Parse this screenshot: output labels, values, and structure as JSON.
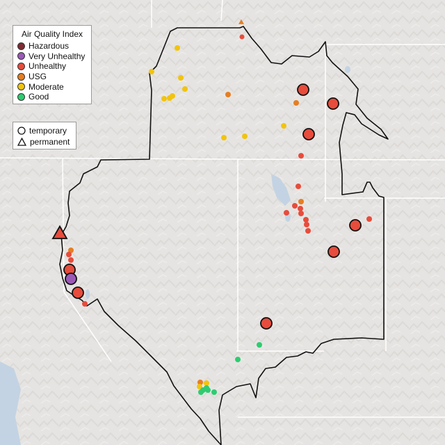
{
  "legend": {
    "title": "Air Quality Index",
    "categories": [
      {
        "label": "Hazardous",
        "color": "#7e2b32"
      },
      {
        "label": "Very Unhealthy",
        "color": "#9b59b6"
      },
      {
        "label": "Unhealthy",
        "color": "#e74c3c"
      },
      {
        "label": "USG",
        "color": "#e67e22"
      },
      {
        "label": "Moderate",
        "color": "#f1c40f"
      },
      {
        "label": "Good",
        "color": "#2ecc71"
      }
    ]
  },
  "type_legend": {
    "temporary_label": "temporary",
    "permanent_label": "permanent"
  },
  "colors": {
    "land": "#e6e4e2",
    "water": "#c3d3e3",
    "borders": "#ffffff",
    "region_outline": "#111111"
  }
}
